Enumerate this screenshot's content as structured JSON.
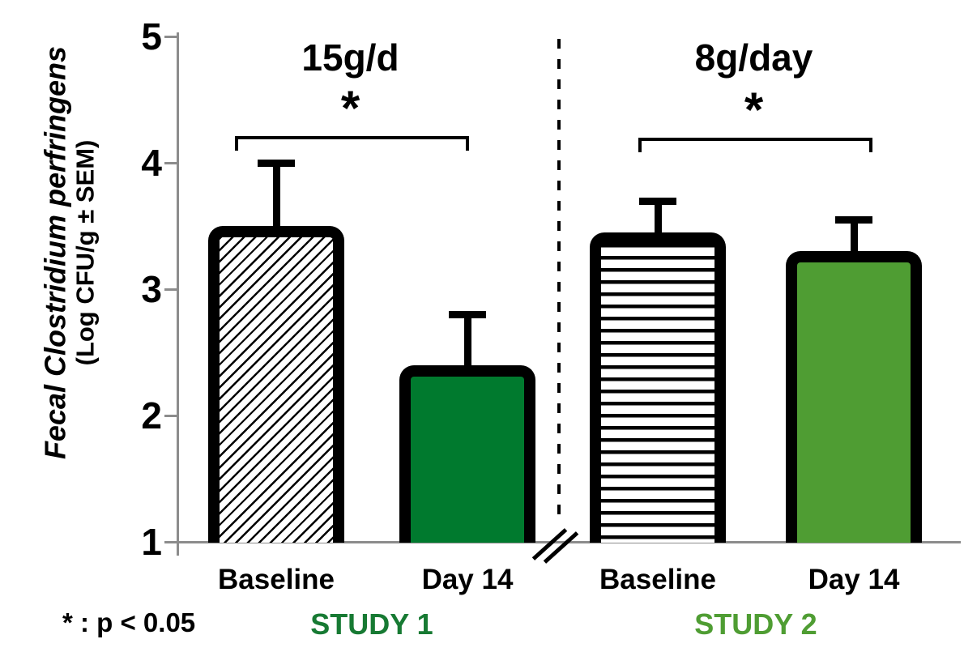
{
  "chart_data": {
    "type": "bar",
    "title": "",
    "ylabel_line1": "Fecal Clostridium perfringens",
    "ylabel_line2": "(Log CFU/g ± SEM)",
    "ylim": [
      1,
      5
    ],
    "yticks": [
      1,
      2,
      3,
      4,
      5
    ],
    "grid": false,
    "error_bars": "upper SEM only",
    "groups": [
      {
        "study_label": "STUDY 1",
        "dose_label": "15g/d",
        "significance": "*",
        "bars": [
          {
            "label": "Baseline",
            "value": 3.5,
            "sem_upper": 0.5,
            "fill": "diagonal-hatch",
            "color": "#FFFFFF"
          },
          {
            "label": "Day 14",
            "value": 2.4,
            "sem_upper": 0.4,
            "fill": "solid",
            "color": "#007A2E"
          }
        ]
      },
      {
        "study_label": "STUDY 2",
        "dose_label": "8g/day",
        "significance": "*",
        "bars": [
          {
            "label": "Baseline",
            "value": 3.45,
            "sem_upper": 0.25,
            "fill": "horizontal-stripes",
            "color": "#FFFFFF"
          },
          {
            "label": "Day 14",
            "value": 3.3,
            "sem_upper": 0.25,
            "fill": "solid",
            "color": "#4F9D33"
          }
        ]
      }
    ],
    "study_label_colors": [
      "#177A33",
      "#4F9D33"
    ],
    "footnote": "* : p < 0.05",
    "axis_color": "#8C8C8C",
    "bar_border_color": "#000000",
    "divider": "dashed vertical line with axis break between studies"
  }
}
